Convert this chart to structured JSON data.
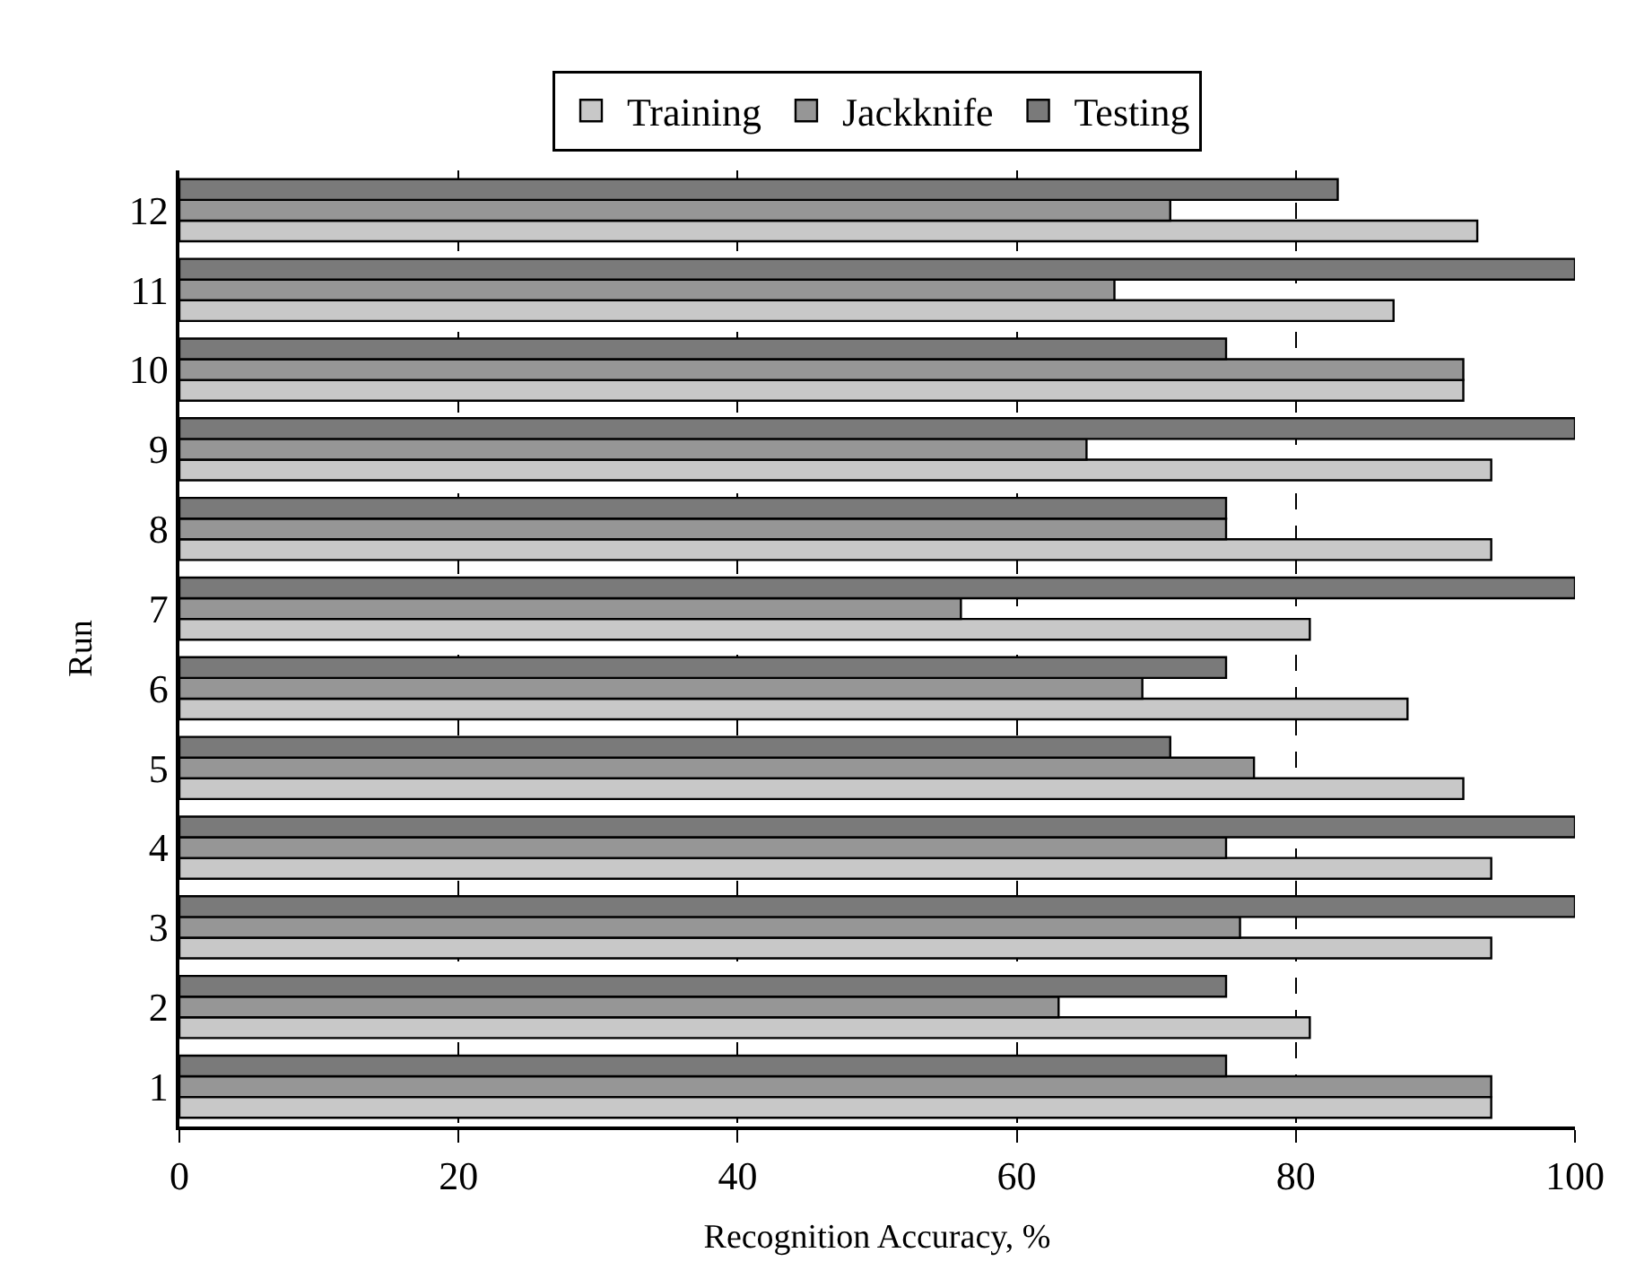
{
  "chart_data": {
    "type": "bar",
    "orientation": "horizontal",
    "xlabel": "Recognition Accuracy, %",
    "ylabel": "Run",
    "categories": [
      "12",
      "11",
      "10",
      "9",
      "8",
      "7",
      "6",
      "5",
      "4",
      "3",
      "2",
      "1"
    ],
    "series": [
      {
        "name": "Training",
        "color": "#c8c8c8",
        "values": [
          93,
          87,
          92,
          94,
          94,
          81,
          88,
          92,
          94,
          94,
          81,
          94
        ]
      },
      {
        "name": "Jackknife",
        "color": "#969696",
        "values": [
          71,
          67,
          92,
          65,
          75,
          56,
          69,
          77,
          75,
          76,
          63,
          94
        ]
      },
      {
        "name": "Testing",
        "color": "#7a7a7a",
        "values": [
          83,
          100,
          75,
          100,
          75,
          100,
          75,
          71,
          100,
          100,
          75,
          75
        ]
      }
    ],
    "xlim": [
      0,
      100
    ],
    "xticks": [
      0,
      20,
      40,
      60,
      80,
      100
    ],
    "grid": "x",
    "legend": "top"
  }
}
